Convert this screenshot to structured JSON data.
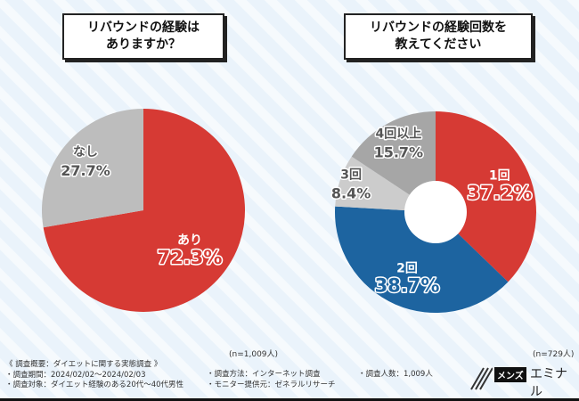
{
  "chart_data": [
    {
      "type": "pie",
      "title": "リバウンドの経験は\nありますか？",
      "categories": [
        "あり",
        "なし"
      ],
      "values": [
        72.3,
        27.7
      ],
      "labels": [
        "72.3%",
        "27.7%"
      ],
      "colors": [
        "#d63a34",
        "#bdbdbd"
      ],
      "note": "(n=1,009人)"
    },
    {
      "type": "donut",
      "title": "リバウンドの経験回数を\n教えてください",
      "categories": [
        "1回",
        "2回",
        "3回",
        "4回以上"
      ],
      "values": [
        37.2,
        38.7,
        8.4,
        15.7
      ],
      "labels": [
        "37.2%",
        "38.7%",
        "8.4%",
        "15.7%"
      ],
      "colors": [
        "#d63a34",
        "#1d64a0",
        "#cccccc",
        "#a6a6a6"
      ],
      "note": "(n=729人)"
    }
  ],
  "titles": {
    "left1": "リバウンドの経験は",
    "left2": "ありますか？",
    "right1": "リバウンドの経験回数を",
    "right2": "教えてください"
  },
  "footer": {
    "summary": "《 調査概要：ダイエットに関する実態調査 》",
    "period": "・調査期間：2024/02/02～2024/02/03",
    "target": "・調査対象：ダイエット経験のある20代～40代男性",
    "method": "・調査方法：インターネット調査",
    "provider": "・モニター提供元：ゼネラルリサーチ",
    "count": "・調査人数：1,009人"
  },
  "logo": {
    "text1": "メンズ",
    "text2": "エミナル"
  }
}
